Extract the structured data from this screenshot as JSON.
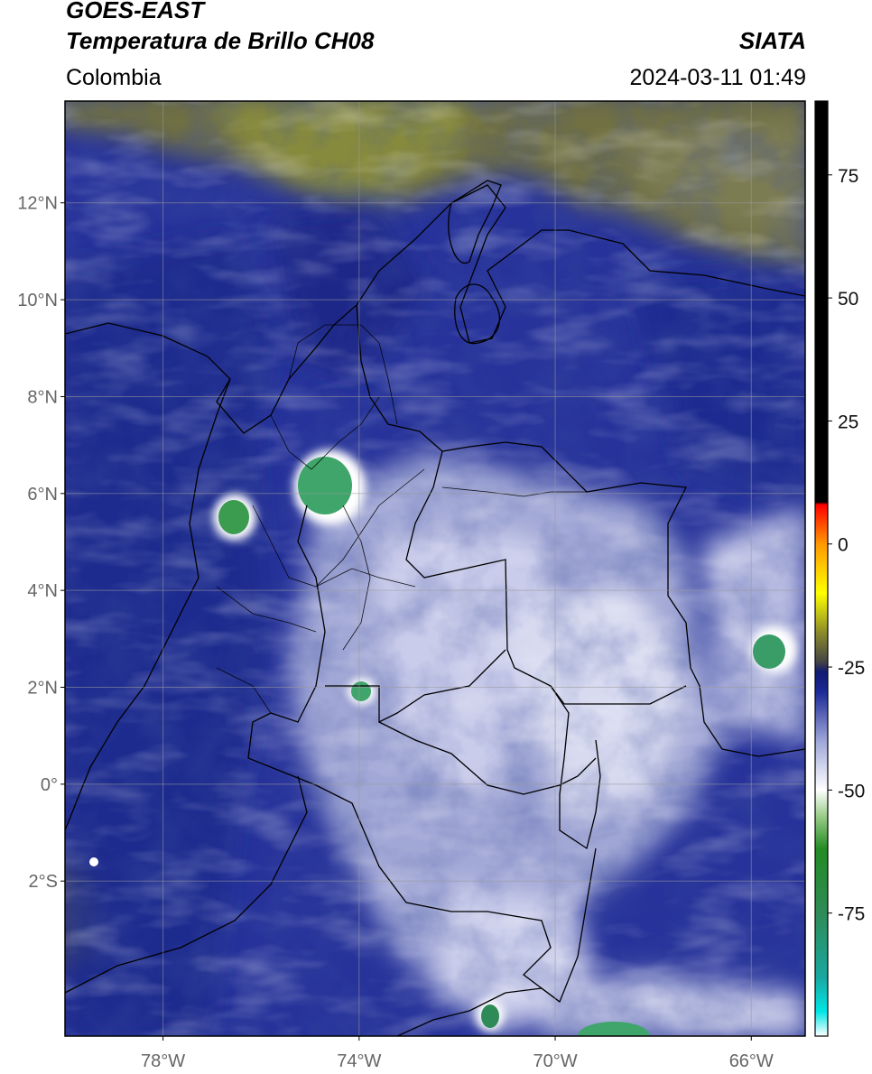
{
  "header": {
    "satellite": "GOES-EAST",
    "product": "Temperatura de Brillo CH08",
    "region": "Colombia",
    "agency": "SIATA",
    "datetime": "2024-03-11 01:49"
  },
  "map": {
    "lon_range": [
      -80,
      -64.9
    ],
    "lat_range": [
      -5.2,
      14.1
    ],
    "lat_ticks": [
      {
        "value": 12,
        "label": "12°N"
      },
      {
        "value": 10,
        "label": "10°N"
      },
      {
        "value": 8,
        "label": "8°N"
      },
      {
        "value": 6,
        "label": "6°N"
      },
      {
        "value": 4,
        "label": "4°N"
      },
      {
        "value": 2,
        "label": "2°N"
      },
      {
        "value": 0,
        "label": "0°"
      },
      {
        "value": -2,
        "label": "2°S"
      }
    ],
    "lon_ticks": [
      {
        "value": -78,
        "label": "78°W"
      },
      {
        "value": -74,
        "label": "74°W"
      },
      {
        "value": -70,
        "label": "70°W"
      },
      {
        "value": -66,
        "label": "66°W"
      }
    ],
    "gridlines": true,
    "colors": {
      "background_deep": "#1f2a8f",
      "dry_olive": "#7d7d3a",
      "cloud_white": "#e6e8f4",
      "cold_green": "#3fa56a",
      "border": "#000000"
    }
  },
  "colorbar": {
    "range": [
      -100,
      90
    ],
    "ticks": [
      {
        "value": 75,
        "label": "75"
      },
      {
        "value": 50,
        "label": "50"
      },
      {
        "value": 25,
        "label": "25"
      },
      {
        "value": 0,
        "label": "0"
      },
      {
        "value": -25,
        "label": "-25"
      },
      {
        "value": -50,
        "label": "-50"
      },
      {
        "value": -75,
        "label": "-75"
      }
    ],
    "stops": [
      {
        "value": -100,
        "color": "#ffffff"
      },
      {
        "value": -95,
        "color": "#00e5e5"
      },
      {
        "value": -88,
        "color": "#1aa7a0"
      },
      {
        "value": -75,
        "color": "#2e8b57"
      },
      {
        "value": -62,
        "color": "#228b22"
      },
      {
        "value": -55,
        "color": "#9fcf8f"
      },
      {
        "value": -50,
        "color": "#ffffff"
      },
      {
        "value": -40,
        "color": "#9ea6d8"
      },
      {
        "value": -30,
        "color": "#1b2a96"
      },
      {
        "value": -26,
        "color": "#101a70"
      },
      {
        "value": -24,
        "color": "#444444"
      },
      {
        "value": -18,
        "color": "#8b8b2a"
      },
      {
        "value": -10,
        "color": "#ffff00"
      },
      {
        "value": 0,
        "color": "#ff9900"
      },
      {
        "value": 8,
        "color": "#ff0000"
      },
      {
        "value": 8.5,
        "color": "#000000"
      },
      {
        "value": 90,
        "color": "#000000"
      }
    ]
  }
}
